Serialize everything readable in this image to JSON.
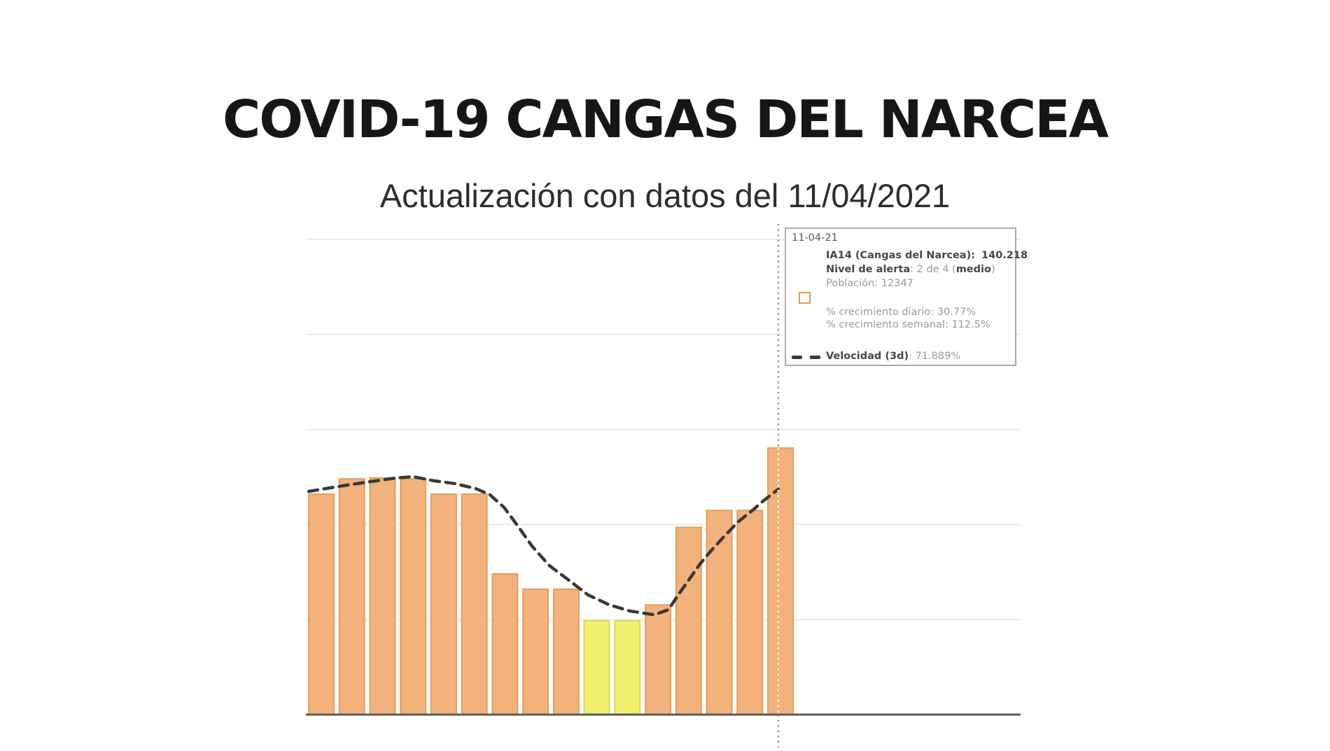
{
  "page": {
    "title": "COVID-19 CANGAS DEL NARCEA",
    "subtitle": "Actualización con datos del 11/04/2021"
  },
  "tooltip": {
    "date": "11-04-21",
    "ia14_label": "IA14 (Cangas del Narcea):",
    "ia14_value": "140.218",
    "alert_label": "Nivel de alerta",
    "alert_value_pre": ": 2 de 4 (",
    "alert_value_bold": "medio",
    "alert_value_post": ")",
    "population_line": "Población: 12347",
    "daily_growth_line": "% crecimiento diario: 30.77%",
    "weekly_growth_line": "% crecimiento semanal: 112.5%",
    "velocity_label": "Velocidad (3d)",
    "velocity_sep": ": ",
    "velocity_value": "71.889%",
    "bar_swatch_color": "#f2b178",
    "dash_swatch_color": "#3a3a3a"
  },
  "chart_data": {
    "type": "bar",
    "title": "IA14 (incidencia acumulada 14 días) por día, Cangas del Narcea",
    "n_bars": 16,
    "values": [
      116,
      124,
      124.5,
      124,
      116,
      116,
      74,
      66,
      66,
      49.4,
      49.4,
      57.7,
      98.5,
      107.4,
      107.4,
      140.218
    ],
    "bar_styles": [
      "orange",
      "orange",
      "orange",
      "orange",
      "orange",
      "orange",
      "orange",
      "orange",
      "orange",
      "yellow",
      "yellow",
      "orange",
      "orange",
      "orange",
      "orange",
      "orange"
    ],
    "highlighted_bar_indices": [
      9,
      10
    ],
    "last_bar_value_matches_tooltip": "140.218",
    "xlabel": "",
    "ylabel": "",
    "x_tick_labels_visible": false,
    "y_tick_labels_visible": false,
    "ylim": [
      0,
      275.5
    ],
    "gridline_values": [
      50,
      100,
      150,
      200,
      250
    ],
    "grid": "horizontal-only",
    "current_date_marker": {
      "style": "dotted-vertical",
      "at_bar_index": 15,
      "x_offset_days": 14.93
    },
    "series": [
      {
        "name": "IA14",
        "type": "bar"
      },
      {
        "name": "Velocidad (3d)",
        "type": "dashed-line",
        "points": [
          [
            -0.41,
            117.4
          ],
          [
            0.71,
            120.4
          ],
          [
            1.62,
            122.6
          ],
          [
            2.42,
            124.4
          ],
          [
            3.0,
            125.2
          ],
          [
            3.68,
            123.0
          ],
          [
            4.37,
            121.5
          ],
          [
            5.05,
            118.9
          ],
          [
            5.51,
            115.6
          ],
          [
            5.97,
            109.0
          ],
          [
            6.43,
            99.0
          ],
          [
            6.88,
            88.7
          ],
          [
            7.45,
            78.4
          ],
          [
            8.03,
            71.4
          ],
          [
            8.71,
            63.0
          ],
          [
            9.4,
            57.8
          ],
          [
            10.08,
            54.5
          ],
          [
            10.88,
            52.5
          ],
          [
            11.34,
            55.2
          ],
          [
            11.69,
            63.7
          ],
          [
            12.03,
            71.4
          ],
          [
            12.37,
            79.2
          ],
          [
            12.71,
            85.8
          ],
          [
            13.17,
            93.9
          ],
          [
            13.63,
            101.6
          ],
          [
            14.09,
            107.5
          ],
          [
            14.43,
            112.3
          ],
          [
            14.93,
            118.6
          ]
        ]
      }
    ],
    "colors": {
      "bar_fill": "#f3b27b",
      "bar_border": "#dfa05f",
      "highlight_fill": "#f1f06f",
      "highlight_border": "#d9d85a",
      "velocity_line": "#383838",
      "marker_line": "#9b9b9b",
      "marker_line_over_bar": "#ffffff",
      "gridline": "#ebebeb",
      "axis_line": "#5a5a5a",
      "background": "#ffffff"
    },
    "legend_position": "tooltip-box-top-right"
  }
}
